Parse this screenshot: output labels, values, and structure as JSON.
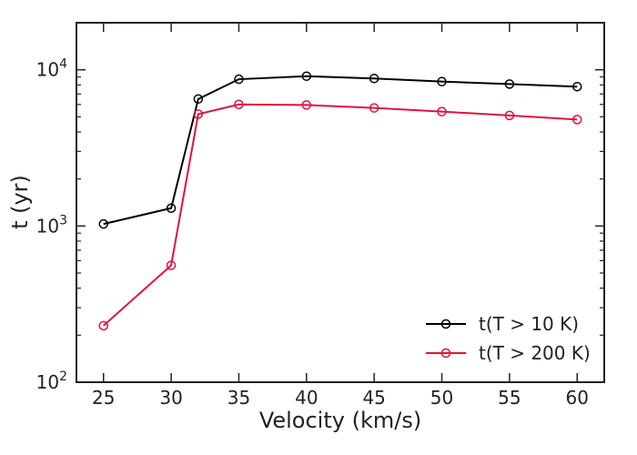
{
  "chart_data": {
    "type": "line",
    "title": "",
    "xlabel": "Velocity (km/s)",
    "ylabel": "t (yr)",
    "yscale": "log",
    "xlim": [
      23,
      62
    ],
    "ylim": [
      100,
      20000
    ],
    "x_ticks": [
      25,
      30,
      35,
      40,
      45,
      50,
      55,
      60
    ],
    "x_tick_labels": [
      "25",
      "30",
      "35",
      "40",
      "45",
      "50",
      "55",
      "60"
    ],
    "y_ticks": [
      100,
      1000,
      10000
    ],
    "y_tick_labels": [
      {
        "base": "10",
        "exp": "2"
      },
      {
        "base": "10",
        "exp": "3"
      },
      {
        "base": "10",
        "exp": "4"
      }
    ],
    "grid": false,
    "legend_position": "lower-right",
    "series": [
      {
        "name": "t(T > 10 K)",
        "color": "#000000",
        "marker": "open-circle",
        "x": [
          25,
          30,
          32,
          35,
          40,
          45,
          50,
          55,
          60
        ],
        "values": [
          1030,
          1300,
          6500,
          8700,
          9100,
          8800,
          8400,
          8100,
          7800
        ]
      },
      {
        "name": "t(T > 200 K)",
        "color": "#dc143c",
        "marker": "open-circle",
        "x": [
          25,
          30,
          32,
          35,
          40,
          45,
          50,
          55,
          60
        ],
        "values": [
          230,
          560,
          5200,
          6000,
          5950,
          5700,
          5400,
          5100,
          4800
        ]
      }
    ]
  }
}
